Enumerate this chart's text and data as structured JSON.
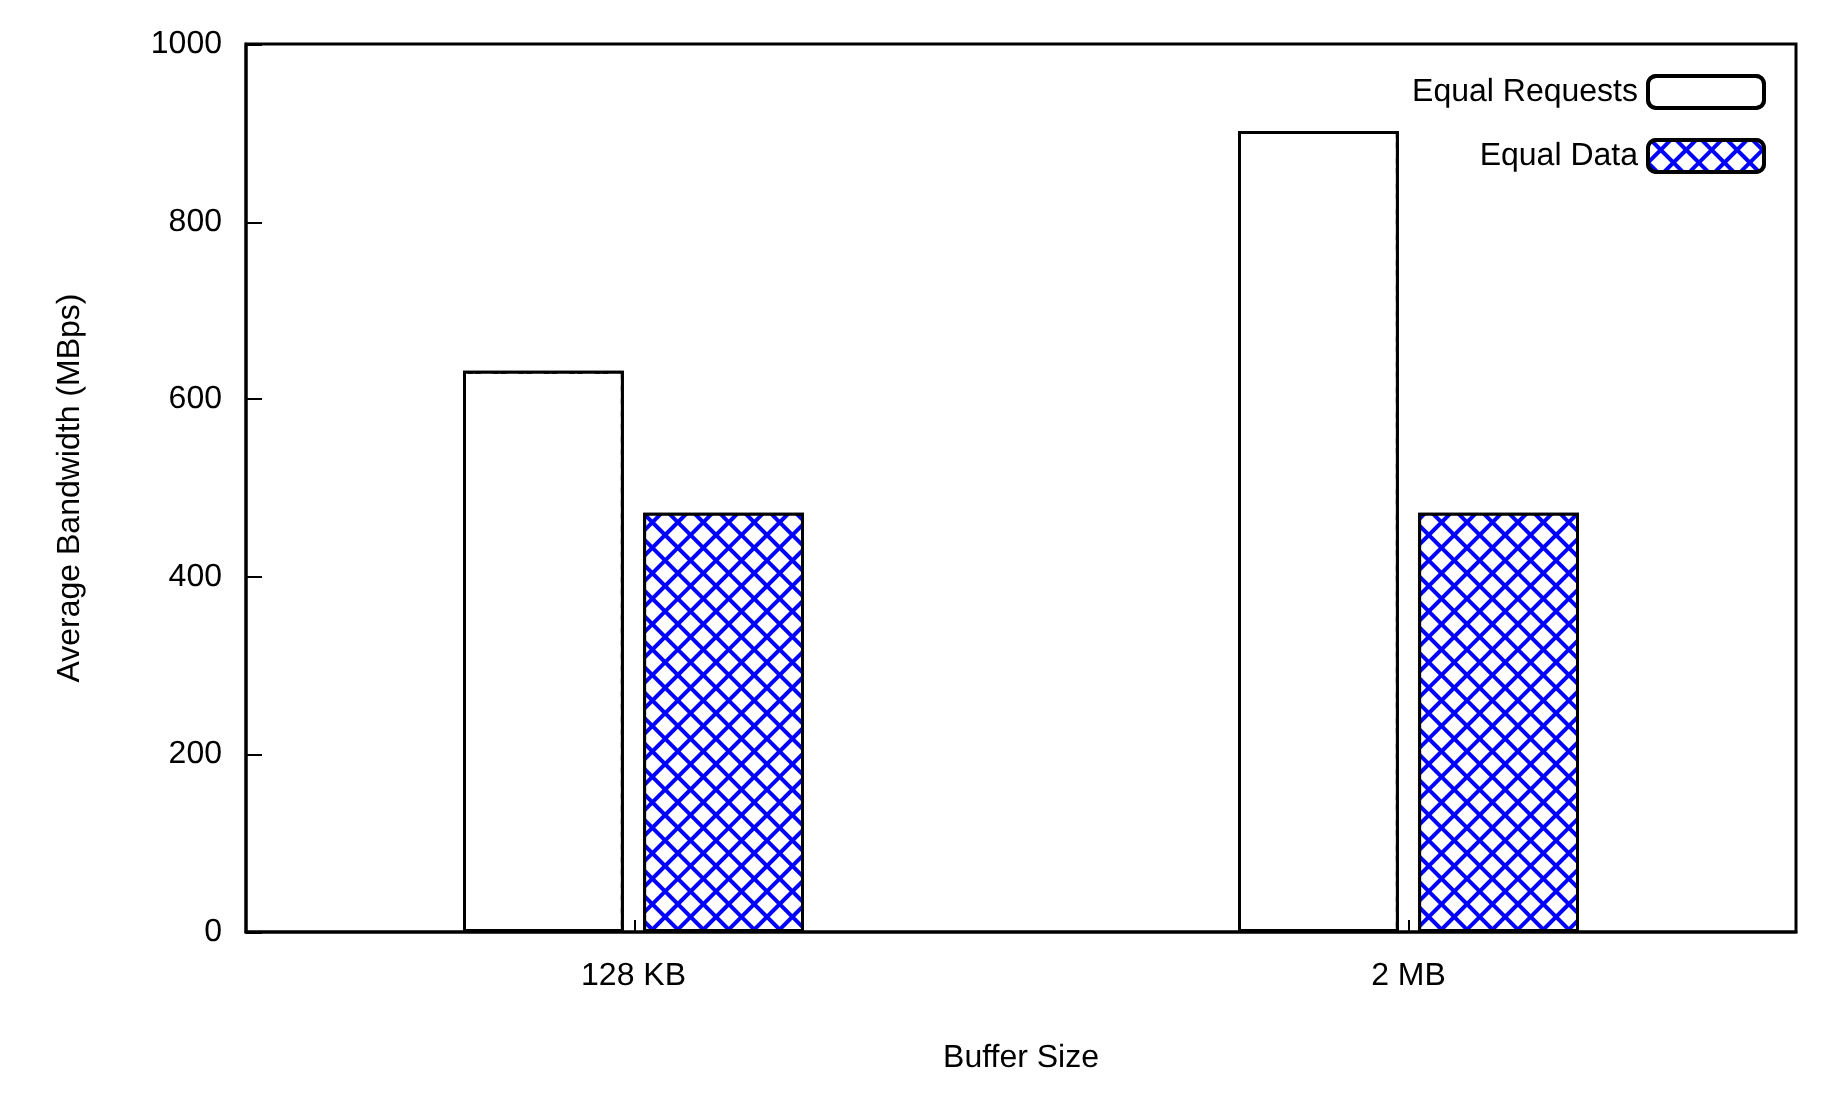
{
  "chart_data": {
    "type": "bar",
    "xlabel": "Buffer Size",
    "ylabel": "Average Bandwidth (MBps)",
    "categories": [
      "128 KB",
      "2 MB"
    ],
    "series": [
      {
        "name": "Equal Requests",
        "color": "#ffffff",
        "values": [
          632,
          902
        ]
      },
      {
        "name": "Equal Data",
        "color": "#0000ff",
        "values": [
          472,
          472
        ]
      }
    ],
    "ylim": [
      0,
      1000
    ],
    "yticks": [
      0,
      200,
      400,
      600,
      800,
      1000
    ],
    "grid": false,
    "legend": "top right"
  }
}
